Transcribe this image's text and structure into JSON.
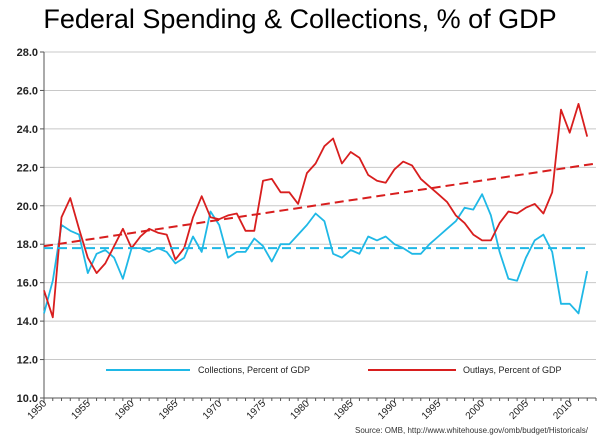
{
  "chart_data": {
    "type": "line",
    "title": "Federal Spending & Collections, % of GDP",
    "source": "Source:  OMB, http://www.whitehouse.gov/omb/budget/Historicals/",
    "xlabel": "",
    "ylabel": "",
    "ylim": [
      10.0,
      28.0
    ],
    "yticks": [
      "10.0",
      "12.0",
      "14.0",
      "16.0",
      "18.0",
      "20.0",
      "22.0",
      "24.0",
      "26.0",
      "28.0"
    ],
    "xlim": [
      1950,
      2013
    ],
    "xticks": [
      "1950",
      "1955",
      "1960",
      "1965",
      "1970",
      "1975",
      "1980",
      "1985",
      "1990",
      "1995",
      "2000",
      "2005",
      "2010"
    ],
    "grid": true,
    "legend_position": "bottom",
    "x": [
      1950,
      1951,
      1952,
      1953,
      1954,
      1955,
      1956,
      1957,
      1958,
      1959,
      1960,
      1961,
      1962,
      1963,
      1964,
      1965,
      1966,
      1967,
      1968,
      1969,
      1970,
      1971,
      1972,
      1973,
      1974,
      1975,
      1976,
      1977,
      1978,
      1979,
      1980,
      1981,
      1982,
      1983,
      1984,
      1985,
      1986,
      1987,
      1988,
      1989,
      1990,
      1991,
      1992,
      1993,
      1994,
      1995,
      1996,
      1997,
      1998,
      1999,
      2000,
      2001,
      2002,
      2003,
      2004,
      2005,
      2006,
      2007,
      2008,
      2009,
      2010,
      2011,
      2012
    ],
    "series": [
      {
        "name": "Collections, Percent of GDP",
        "color": "#1fb8e6",
        "values": [
          14.4,
          16.1,
          19.0,
          18.7,
          18.5,
          16.5,
          17.5,
          17.7,
          17.3,
          16.2,
          17.8,
          17.8,
          17.6,
          17.8,
          17.6,
          17.0,
          17.3,
          18.4,
          17.6,
          19.7,
          19.0,
          17.3,
          17.6,
          17.6,
          18.3,
          17.9,
          17.1,
          18.0,
          18.0,
          18.5,
          19.0,
          19.6,
          19.2,
          17.5,
          17.3,
          17.7,
          17.5,
          18.4,
          18.2,
          18.4,
          18.0,
          17.8,
          17.5,
          17.5,
          18.0,
          18.4,
          18.8,
          19.2,
          19.9,
          19.8,
          20.6,
          19.5,
          17.6,
          16.2,
          16.1,
          17.3,
          18.2,
          18.5,
          17.6,
          14.9,
          14.9,
          14.4,
          16.6
        ]
      },
      {
        "name": "Outlays, Percent of GDP",
        "color": "#d81e1e",
        "values": [
          15.6,
          14.2,
          19.4,
          20.4,
          18.8,
          17.3,
          16.5,
          17.0,
          17.9,
          18.8,
          17.8,
          18.4,
          18.8,
          18.6,
          18.5,
          17.2,
          17.8,
          19.4,
          20.5,
          19.4,
          19.3,
          19.5,
          19.6,
          18.7,
          18.7,
          21.3,
          21.4,
          20.7,
          20.7,
          20.1,
          21.7,
          22.2,
          23.1,
          23.5,
          22.2,
          22.8,
          22.5,
          21.6,
          21.3,
          21.2,
          21.9,
          22.3,
          22.1,
          21.4,
          21.0,
          20.6,
          20.2,
          19.5,
          19.1,
          18.5,
          18.2,
          18.2,
          19.1,
          19.7,
          19.6,
          19.9,
          20.1,
          19.6,
          20.7,
          25.0,
          23.8,
          25.3,
          23.6
        ]
      },
      {
        "name": "",
        "color": "#1fb8e6",
        "dashed": true,
        "values_from_to": [
          [
            1950,
            17.8
          ],
          [
            2012,
            17.8
          ]
        ]
      },
      {
        "name": "",
        "color": "#d81e1e",
        "dashed": true,
        "values_from_to": [
          [
            1950,
            17.9
          ],
          [
            2013,
            22.2
          ]
        ]
      }
    ]
  }
}
